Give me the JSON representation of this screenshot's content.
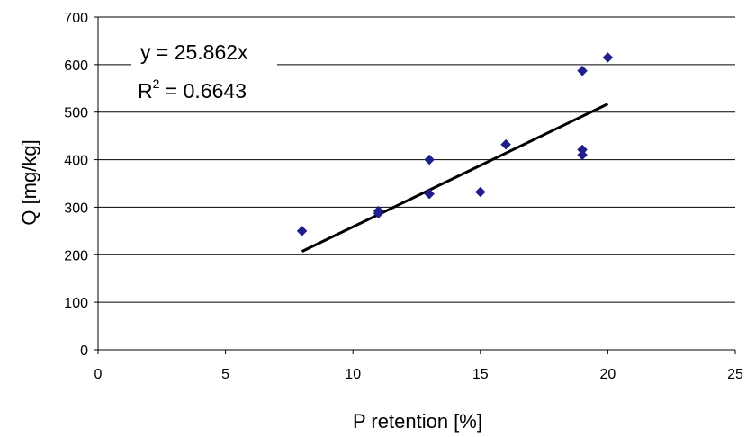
{
  "chart_data": {
    "type": "scatter",
    "xlabel": "P retention [%]",
    "ylabel": "Q [mg/kg]",
    "xlim": [
      0,
      25
    ],
    "ylim": [
      0,
      700
    ],
    "x_ticks": [
      "0",
      "5",
      "10",
      "15",
      "20",
      "25"
    ],
    "y_ticks": [
      "0",
      "100",
      "200",
      "300",
      "400",
      "500",
      "600",
      "700"
    ],
    "grid": "horizontal",
    "legend": "none",
    "series": [
      {
        "points": [
          {
            "x": 8,
            "y": 250
          },
          {
            "x": 11,
            "y": 287
          },
          {
            "x": 11,
            "y": 292
          },
          {
            "x": 13,
            "y": 400
          },
          {
            "x": 13,
            "y": 328
          },
          {
            "x": 15,
            "y": 332
          },
          {
            "x": 16,
            "y": 432
          },
          {
            "x": 19,
            "y": 587
          },
          {
            "x": 19,
            "y": 421
          },
          {
            "x": 19,
            "y": 410
          },
          {
            "x": 20,
            "y": 615
          }
        ],
        "color": "#1f1f8c",
        "marker": "diamond"
      }
    ],
    "trendline": {
      "slope": 25.862,
      "x_range": [
        8,
        20
      ],
      "color": "#000000"
    },
    "annotation": {
      "equation": "y = 25.862x",
      "r2_prefix": "R",
      "r2_sup": "2",
      "r2_value": " = 0.6643"
    }
  }
}
